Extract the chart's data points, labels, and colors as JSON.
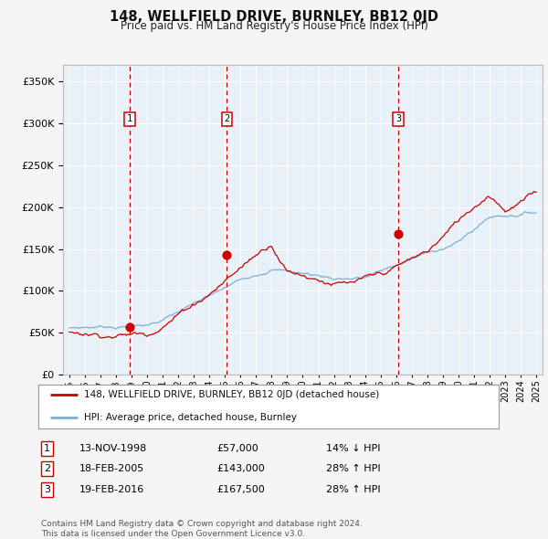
{
  "title": "148, WELLFIELD DRIVE, BURNLEY, BB12 0JD",
  "subtitle": "Price paid vs. HM Land Registry's House Price Index (HPI)",
  "transactions": [
    {
      "num": 1,
      "date_str": "13-NOV-1998",
      "year": 1998.87,
      "price": 57000,
      "pct": "14%",
      "dir": "↓"
    },
    {
      "num": 2,
      "date_str": "18-FEB-2005",
      "year": 2005.13,
      "price": 143000,
      "pct": "28%",
      "dir": "↑"
    },
    {
      "num": 3,
      "date_str": "19-FEB-2016",
      "year": 2016.13,
      "price": 167500,
      "pct": "28%",
      "dir": "↑"
    }
  ],
  "red_line_color": "#cc0000",
  "blue_line_color": "#7bafd4",
  "plot_bg": "#e8f0f8",
  "fig_bg": "#f5f5f5",
  "grid_color": "#ffffff",
  "dashed_line_color": "#cc0000",
  "marker_color": "#cc0000",
  "legend_label_red": "148, WELLFIELD DRIVE, BURNLEY, BB12 0JD (detached house)",
  "legend_label_blue": "HPI: Average price, detached house, Burnley",
  "footer": "Contains HM Land Registry data © Crown copyright and database right 2024.\nThis data is licensed under the Open Government Licence v3.0.",
  "ylim": [
    0,
    370000
  ],
  "yticks": [
    0,
    50000,
    100000,
    150000,
    200000,
    250000,
    300000,
    350000
  ],
  "xlabel_years": [
    1995,
    1996,
    1997,
    1998,
    1999,
    2000,
    2001,
    2002,
    2003,
    2004,
    2005,
    2006,
    2007,
    2008,
    2009,
    2010,
    2011,
    2012,
    2013,
    2014,
    2015,
    2016,
    2017,
    2018,
    2019,
    2020,
    2021,
    2022,
    2023,
    2024,
    2025
  ],
  "table_rows": [
    {
      "num": "1",
      "date": "13-NOV-1998",
      "price": "£57,000",
      "pct": "14% ↓ HPI"
    },
    {
      "num": "2",
      "date": "18-FEB-2005",
      "price": "£143,000",
      "pct": "28% ↑ HPI"
    },
    {
      "num": "3",
      "date": "19-FEB-2016",
      "price": "£167,500",
      "pct": "28% ↑ HPI"
    }
  ]
}
